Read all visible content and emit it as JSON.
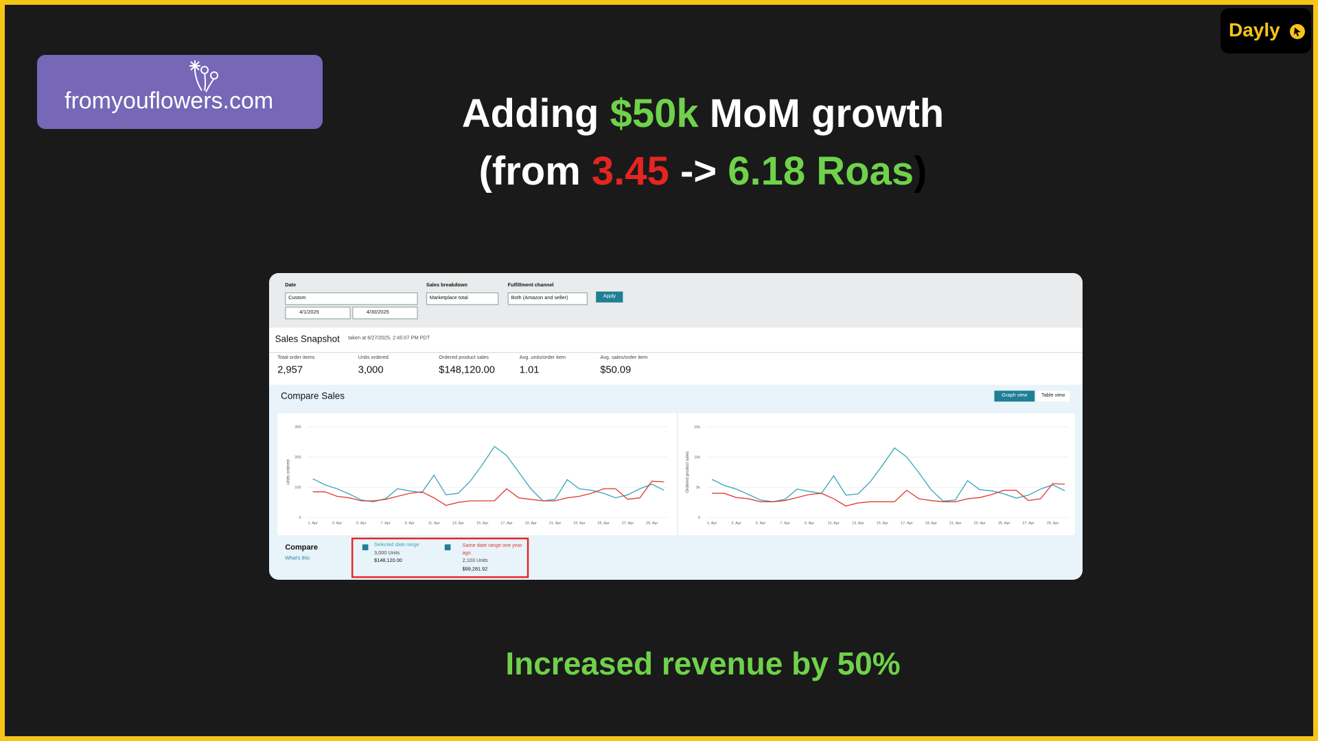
{
  "header": {
    "brand": "fromyouflowers.com",
    "badge": "Dayly"
  },
  "headline": {
    "word1": "Adding",
    "amount": "$50k",
    "rest1": "MoM growth",
    "open": "(from",
    "old_roas": "3.45",
    "arrow": "->",
    "new_roas": "6.18 Roas",
    "close": ")"
  },
  "footer": "Increased revenue by 50%",
  "screenshot": {
    "filters": {
      "date_label": "Date",
      "date_mode": "Custom",
      "start": "4/1/2025",
      "end": "4/30/2025",
      "breakdown_label": "Sales breakdown",
      "breakdown": "Marketplace total",
      "fulfillment_label": "Fulfillment channel",
      "fulfillment": "Both (Amazon and seller)",
      "apply": "Apply"
    },
    "snapshot": {
      "title": "Sales Snapshot",
      "timestamp": "taken at 6/27/2025, 2:45:07 PM PDT",
      "metrics": [
        {
          "label": "Total order items",
          "value": "2,957"
        },
        {
          "label": "Units ordered",
          "value": "3,000"
        },
        {
          "label": "Ordered product sales",
          "value": "$148,120.00"
        },
        {
          "label": "Avg. units/order item",
          "value": "1.01"
        },
        {
          "label": "Avg. sales/order item",
          "value": "$50.09"
        }
      ]
    },
    "compare_sales": {
      "title": "Compare Sales",
      "views": [
        "Graph view",
        "Table view"
      ]
    },
    "compare": {
      "title": "Compare",
      "help": "What's this",
      "selected_units": "3,000 Units",
      "selected_sales": "$148,120.00",
      "previous_units": "2,103 Units",
      "previous_sales": "$99,281.92"
    }
  },
  "chart_data": [
    {
      "type": "line",
      "y_label": "Units ordered",
      "categories": [
        "1. Apr",
        null,
        "3. Apr",
        null,
        "5. Apr",
        null,
        "7. Apr",
        null,
        "9. Apr",
        null,
        "11. Apr",
        null,
        "13. Apr",
        null,
        "15. Apr",
        null,
        "17. Apr",
        null,
        "19. Apr",
        null,
        "21. Apr",
        null,
        "23. Apr",
        null,
        "25. Apr",
        null,
        "27. Apr",
        null,
        "29. Apr",
        null
      ],
      "ylim": [
        0,
        300
      ],
      "yticks": [
        0,
        100,
        200,
        300
      ],
      "series": [
        {
          "name": "Selected date range",
          "color": "#3aa6b9",
          "values": [
            128,
            108,
            95,
            78,
            58,
            52,
            62,
            95,
            88,
            82,
            140,
            75,
            80,
            120,
            175,
            235,
            205,
            150,
            95,
            55,
            60,
            125,
            95,
            90,
            80,
            65,
            75,
            95,
            110,
            90
          ]
        },
        {
          "name": "Same date range one year ago",
          "color": "#e03a2f",
          "values": [
            85,
            85,
            70,
            65,
            55,
            55,
            60,
            70,
            80,
            85,
            65,
            40,
            50,
            55,
            55,
            55,
            95,
            65,
            60,
            55,
            55,
            65,
            70,
            80,
            95,
            95,
            60,
            65,
            120,
            118
          ]
        }
      ]
    },
    {
      "type": "line",
      "y_label": "Ordered product sales",
      "categories": [
        "1. Apr",
        null,
        "3. Apr",
        null,
        "5. Apr",
        null,
        "7. Apr",
        null,
        "9. Apr",
        null,
        "11. Apr",
        null,
        "13. Apr",
        null,
        "15. Apr",
        null,
        "17. Apr",
        null,
        "19. Apr",
        null,
        "21. Apr",
        null,
        "23. Apr",
        null,
        "25. Apr",
        null,
        "27. Apr",
        null,
        "29. Apr",
        null
      ],
      "ylim": [
        0,
        15000
      ],
      "yticks": [
        0,
        {
          "value": 5000,
          "label": "5k"
        },
        {
          "value": 10000,
          "label": "10k"
        },
        {
          "value": 15000,
          "label": "15k"
        }
      ],
      "series": [
        {
          "color": "#3aa6b9",
          "values": [
            6300,
            5300,
            4700,
            3800,
            2900,
            2600,
            3000,
            4700,
            4300,
            4000,
            6900,
            3700,
            3900,
            5900,
            8600,
            11500,
            10000,
            7400,
            4600,
            2700,
            2900,
            6100,
            4600,
            4400,
            3900,
            3200,
            3700,
            4700,
            5400,
            4400
          ]
        },
        {
          "color": "#e03a2f",
          "values": [
            4000,
            4000,
            3300,
            3100,
            2600,
            2600,
            2800,
            3300,
            3800,
            4000,
            3100,
            1900,
            2400,
            2600,
            2600,
            2600,
            4500,
            3100,
            2800,
            2600,
            2600,
            3100,
            3300,
            3800,
            4500,
            4500,
            2800,
            3100,
            5600,
            5500
          ]
        }
      ]
    }
  ]
}
